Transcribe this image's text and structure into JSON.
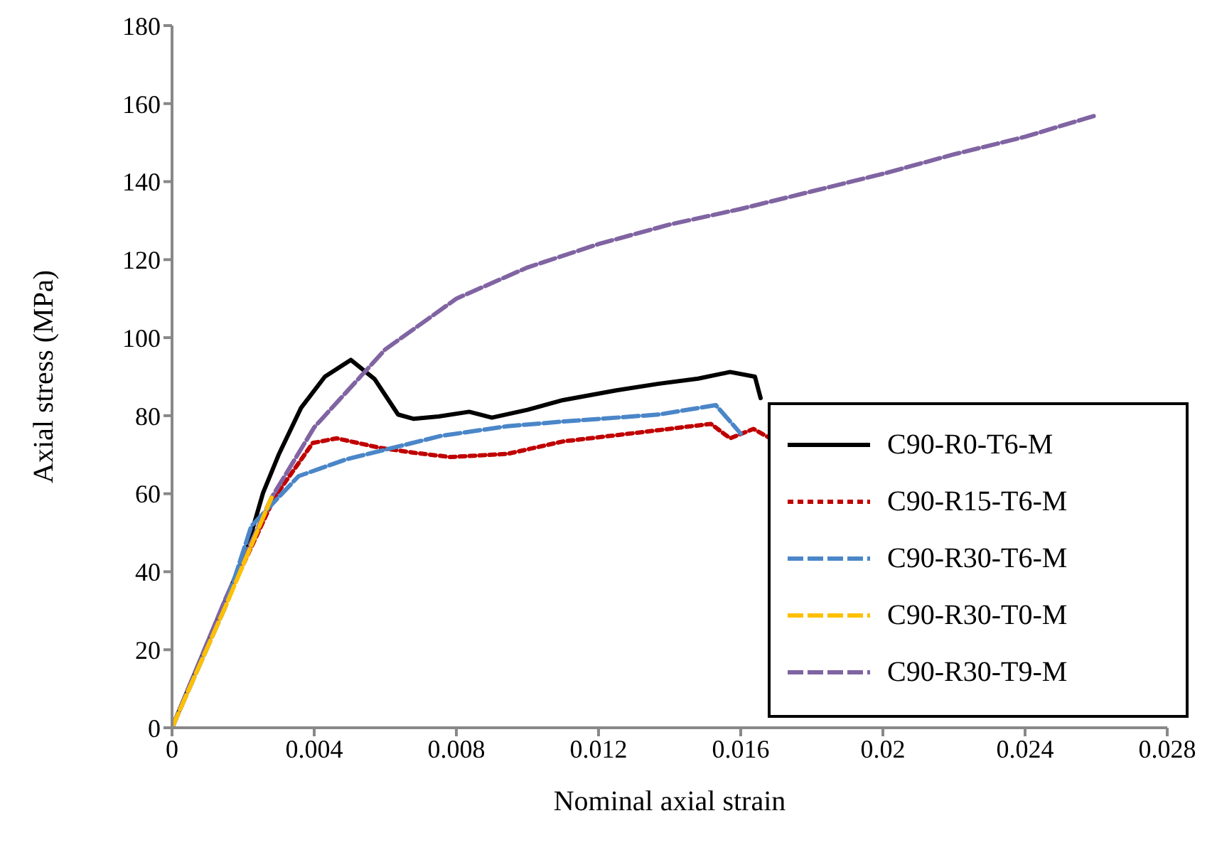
{
  "chart_data": {
    "type": "line",
    "xlabel": "Nominal axial strain",
    "ylabel": "Axial stress (MPa)",
    "xlim": [
      0,
      0.028
    ],
    "xticks": [
      0,
      0.004,
      0.008,
      0.012,
      0.016,
      0.02,
      0.024,
      0.028
    ],
    "ylim": [
      0,
      180
    ],
    "yticks": [
      0,
      20,
      40,
      60,
      80,
      100,
      120,
      140,
      160,
      180
    ],
    "grid": false,
    "legend": "bottom right",
    "marker": "none",
    "series": [
      {
        "name": "C90-R0-T6-M",
        "color": "#000000",
        "line_style": "solid",
        "x": [
          0,
          0.0021,
          0.00256,
          0.003,
          0.00363,
          0.0043,
          0.00503,
          0.0057,
          0.00636,
          0.0068,
          0.0075,
          0.00836,
          0.009,
          0.01,
          0.011,
          0.0125,
          0.0137,
          0.0148,
          0.0157,
          0.0164,
          0.01656
        ],
        "values": [
          0,
          45.7,
          60.2,
          70,
          82,
          90,
          94.3,
          89.4,
          80.3,
          79.2,
          79.8,
          81,
          79.5,
          81.5,
          84,
          86.5,
          88.2,
          89.5,
          91.2,
          90,
          84.5
        ]
      },
      {
        "name": "C90-R15-T6-M",
        "color": "#c00000",
        "line_style": "dotted",
        "x": [
          0,
          0.0015,
          0.00288,
          0.00396,
          0.00463,
          0.00583,
          0.0068,
          0.00783,
          0.00943,
          0.011,
          0.0125,
          0.0137,
          0.01516,
          0.0157,
          0.01636,
          0.01683
        ],
        "values": [
          0,
          32,
          59,
          73,
          74.2,
          71.8,
          70.5,
          69.4,
          70.2,
          73.4,
          75,
          76.3,
          77.9,
          74.2,
          76.6,
          74.2
        ]
      },
      {
        "name": "C90-R30-T6-M",
        "color": "#4a86c8",
        "line_style": "dashed",
        "x": [
          0,
          0.0015,
          0.00223,
          0.00356,
          0.0049,
          0.00623,
          0.00756,
          0.00943,
          0.011,
          0.0137,
          0.0153,
          0.016
        ],
        "values": [
          0,
          31,
          51.7,
          64.5,
          68.8,
          71.8,
          74.8,
          77.3,
          78.5,
          80.3,
          82.7,
          75.4
        ]
      },
      {
        "name": "C90-R30-T0-M",
        "color": "#ffc000",
        "line_style": "dashed",
        "x": [
          0,
          0.0015,
          0.0028
        ],
        "values": [
          0,
          31,
          59
        ]
      },
      {
        "name": "C90-R30-T9-M",
        "color": "#8064a2",
        "line_style": "dashed",
        "x": [
          0,
          0.0015,
          0.0028,
          0.004,
          0.006,
          0.008,
          0.01,
          0.012,
          0.014,
          0.016,
          0.018,
          0.02,
          0.022,
          0.024,
          0.026
        ],
        "values": [
          0,
          33,
          59,
          77,
          97,
          110,
          118,
          124,
          129,
          133,
          137.5,
          142,
          147,
          151.5,
          157
        ]
      }
    ]
  }
}
